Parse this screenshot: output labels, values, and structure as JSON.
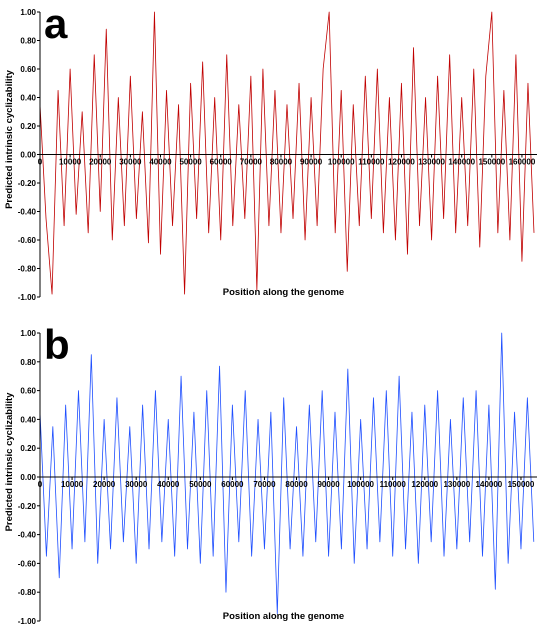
{
  "chart_data": [
    {
      "type": "line",
      "title": "a",
      "xlabel": "Position along the genome",
      "ylabel": "Predicted intrinsic cyclizability",
      "xlim": [
        0,
        165000
      ],
      "xticks": [
        0,
        10000,
        20000,
        30000,
        40000,
        50000,
        60000,
        70000,
        80000,
        90000,
        100000,
        110000,
        120000,
        130000,
        140000,
        150000,
        160000
      ],
      "ylim": [
        -1,
        1
      ],
      "yticks": [
        {
          "value": 1,
          "label": "1.00"
        },
        {
          "value": 0.8,
          "label": "0.80"
        },
        {
          "value": 0.6,
          "label": "0.60"
        },
        {
          "value": 0.4,
          "label": "0.40"
        },
        {
          "value": 0.2,
          "label": "0.20"
        },
        {
          "value": 0,
          "label": "0.00"
        },
        {
          "value": -0.2,
          "label": "-0.20"
        },
        {
          "value": -0.4,
          "label": "-0.40"
        },
        {
          "value": -0.6,
          "label": "-0.60"
        },
        {
          "value": -0.8,
          "label": "-0.80"
        },
        {
          "value": -1,
          "label": "-1.00"
        }
      ],
      "color": "#c00000",
      "x": [
        0,
        2000,
        4000,
        6000,
        8000,
        10000,
        12000,
        14000,
        16000,
        18000,
        20000,
        22000,
        24000,
        26000,
        28000,
        30000,
        32000,
        34000,
        36000,
        38000,
        40000,
        42000,
        44000,
        46000,
        48000,
        50000,
        52000,
        54000,
        56000,
        58000,
        60000,
        62000,
        64000,
        66000,
        68000,
        70000,
        72000,
        74000,
        76000,
        78000,
        80000,
        82000,
        84000,
        86000,
        88000,
        90000,
        92000,
        94000,
        96000,
        98000,
        100000,
        102000,
        104000,
        106000,
        108000,
        110000,
        112000,
        114000,
        116000,
        118000,
        120000,
        122000,
        124000,
        126000,
        128000,
        130000,
        132000,
        134000,
        136000,
        138000,
        140000,
        142000,
        144000,
        146000,
        148000,
        150000,
        152000,
        154000,
        156000,
        158000,
        160000,
        162000,
        164000
      ],
      "values": [
        0.35,
        -0.45,
        -0.98,
        0.45,
        -0.5,
        0.6,
        -0.42,
        0.3,
        -0.55,
        0.7,
        -0.4,
        0.88,
        -0.6,
        0.4,
        -0.5,
        0.55,
        -0.45,
        0.3,
        -0.62,
        1.0,
        -0.7,
        0.45,
        -0.5,
        0.35,
        -0.98,
        0.5,
        -0.45,
        0.65,
        -0.55,
        0.4,
        -0.6,
        0.7,
        -0.5,
        0.35,
        -0.45,
        0.55,
        -0.95,
        0.6,
        -0.5,
        0.45,
        -0.55,
        0.35,
        -0.45,
        0.5,
        -0.6,
        0.4,
        -0.5,
        0.6,
        1.0,
        -0.55,
        0.45,
        -0.82,
        0.35,
        -0.5,
        0.55,
        -0.45,
        0.6,
        -0.55,
        0.4,
        -0.6,
        0.5,
        -0.7,
        0.75,
        -0.5,
        0.4,
        -0.6,
        0.55,
        -0.45,
        0.7,
        -0.55,
        0.4,
        -0.5,
        0.6,
        -0.65,
        0.55,
        1.0,
        -0.55,
        0.45,
        -0.6,
        0.7,
        -0.75,
        0.5,
        -0.55
      ]
    },
    {
      "type": "line",
      "title": "b",
      "xlabel": "Position along the genome",
      "ylabel": "Predicted intrinsic cyclizability",
      "xlim": [
        0,
        155000
      ],
      "xticks": [
        0,
        10000,
        20000,
        30000,
        40000,
        50000,
        60000,
        70000,
        80000,
        90000,
        100000,
        110000,
        120000,
        130000,
        140000,
        150000
      ],
      "ylim": [
        -1,
        1
      ],
      "yticks": [
        {
          "value": 1,
          "label": "1.00"
        },
        {
          "value": 0.8,
          "label": "0.80"
        },
        {
          "value": 0.6,
          "label": "0.60"
        },
        {
          "value": 0.4,
          "label": "0.40"
        },
        {
          "value": 0.2,
          "label": "0.20"
        },
        {
          "value": 0,
          "label": "0.00"
        },
        {
          "value": -0.2,
          "label": "-0.20"
        },
        {
          "value": -0.4,
          "label": "-0.40"
        },
        {
          "value": -0.6,
          "label": "-0.60"
        },
        {
          "value": -0.8,
          "label": "-0.80"
        },
        {
          "value": -1,
          "label": "-1.00"
        }
      ],
      "color": "#1f4fff",
      "x": [
        0,
        2000,
        4000,
        6000,
        8000,
        10000,
        12000,
        14000,
        16000,
        18000,
        20000,
        22000,
        24000,
        26000,
        28000,
        30000,
        32000,
        34000,
        36000,
        38000,
        40000,
        42000,
        44000,
        46000,
        48000,
        50000,
        52000,
        54000,
        56000,
        58000,
        60000,
        62000,
        64000,
        66000,
        68000,
        70000,
        72000,
        74000,
        76000,
        78000,
        80000,
        82000,
        84000,
        86000,
        88000,
        90000,
        92000,
        94000,
        96000,
        98000,
        100000,
        102000,
        104000,
        106000,
        108000,
        110000,
        112000,
        114000,
        116000,
        118000,
        120000,
        122000,
        124000,
        126000,
        128000,
        130000,
        132000,
        134000,
        136000,
        138000,
        140000,
        142000,
        144000,
        146000,
        148000,
        150000,
        152000,
        154000
      ],
      "values": [
        0.45,
        -0.55,
        0.35,
        -0.7,
        0.5,
        -0.5,
        0.6,
        -0.45,
        0.85,
        -0.6,
        0.4,
        -0.5,
        0.55,
        -0.45,
        0.35,
        -0.6,
        0.5,
        -0.5,
        0.6,
        -0.45,
        0.4,
        -0.55,
        0.7,
        -0.5,
        0.45,
        -0.6,
        0.6,
        -0.55,
        0.77,
        -0.8,
        0.5,
        -0.45,
        0.6,
        -0.55,
        0.4,
        -0.5,
        0.45,
        -0.95,
        0.55,
        -0.5,
        0.35,
        -0.55,
        0.5,
        -0.45,
        0.6,
        -0.55,
        0.45,
        -0.5,
        0.75,
        -0.6,
        0.4,
        -0.5,
        0.55,
        -0.45,
        0.6,
        -0.55,
        0.7,
        -0.5,
        0.45,
        -0.6,
        0.5,
        -0.45,
        0.6,
        -0.55,
        0.4,
        -0.5,
        0.55,
        -0.45,
        0.6,
        -0.55,
        0.5,
        -0.78,
        1.0,
        -0.6,
        0.45,
        -0.5,
        0.55,
        -0.45
      ]
    }
  ]
}
